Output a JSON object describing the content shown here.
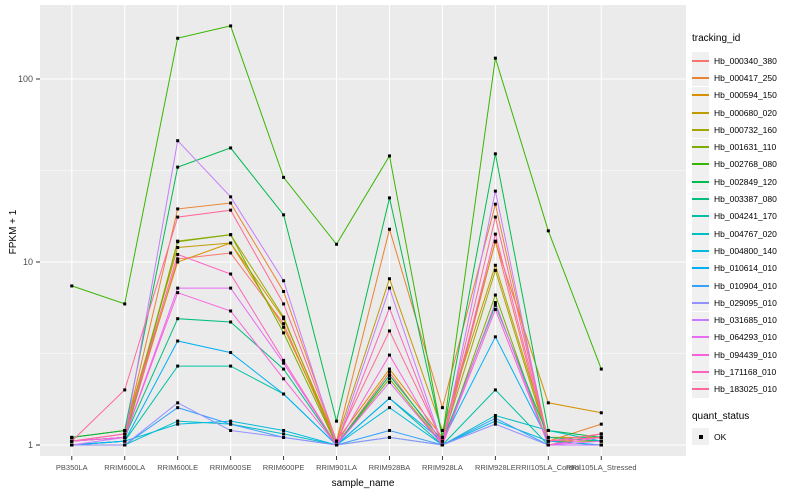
{
  "chart_data": {
    "type": "line",
    "title": "",
    "xlabel": "sample_name",
    "ylabel": "FPKM + 1",
    "y_scale": "log10",
    "y_ticks": [
      1,
      10,
      100
    ],
    "y_tick_labels": [
      "1",
      "10",
      "100"
    ],
    "y_minor_ticks": [
      3.162,
      31.62
    ],
    "ylim": [
      0.9,
      250
    ],
    "grid": true,
    "legend_position": "right",
    "legend_title": "tracking_id",
    "legend2_title": "quant_status",
    "legend2_items": [
      {
        "label": "OK",
        "marker": "black-square-point"
      }
    ],
    "categories": [
      "PB350LA",
      "RRIM600LA",
      "RRIM600LE",
      "RRIM600SE",
      "RRIM600PE",
      "RRIM901LA",
      "RRIM928BA",
      "RRIM928LA",
      "RRIM928LE",
      "RRII105LA_Control",
      "RRII105LA_Stressed"
    ],
    "series": [
      {
        "name": "Hb_000340_380",
        "color": "#F8766D",
        "values": [
          1.05,
          1.1,
          10.4,
          11.2,
          4.6,
          1.0,
          2.5,
          1.0,
          13.0,
          1.0,
          1.15
        ]
      },
      {
        "name": "Hb_000417_250",
        "color": "#EA8331",
        "values": [
          1.05,
          1.15,
          19.5,
          21.0,
          6.9,
          1.05,
          15.1,
          1.6,
          20.7,
          1.05,
          1.3
        ]
      },
      {
        "name": "Hb_000594_150",
        "color": "#D89000",
        "values": [
          1.1,
          1.2,
          10.0,
          12.7,
          4.4,
          1.05,
          2.6,
          1.1,
          12.9,
          1.7,
          1.5
        ]
      },
      {
        "name": "Hb_000680_020",
        "color": "#C09B00",
        "values": [
          1.1,
          1.2,
          12.0,
          12.7,
          4.9,
          1.05,
          8.1,
          1.2,
          9.6,
          1.1,
          1.1
        ]
      },
      {
        "name": "Hb_000732_160",
        "color": "#A3A500",
        "values": [
          1.05,
          1.1,
          13.0,
          14.1,
          5.0,
          1.0,
          2.4,
          1.05,
          9.0,
          1.05,
          1.05
        ]
      },
      {
        "name": "Hb_001631_110",
        "color": "#7CAE00",
        "values": [
          1.0,
          1.05,
          12.9,
          14.1,
          4.1,
          1.0,
          2.3,
          1.0,
          6.6,
          1.0,
          1.0
        ]
      },
      {
        "name": "Hb_002768_080",
        "color": "#39B600",
        "values": [
          7.4,
          5.9,
          167,
          195,
          29,
          12.5,
          38,
          1.1,
          130,
          14.8,
          2.6
        ]
      },
      {
        "name": "Hb_002849_120",
        "color": "#00BB4E",
        "values": [
          1.1,
          1.2,
          33,
          42,
          18.1,
          1.35,
          22.4,
          1.1,
          39,
          1.2,
          1.1
        ]
      },
      {
        "name": "Hb_003387_080",
        "color": "#00BF7D",
        "values": [
          1.05,
          1.1,
          4.9,
          4.7,
          2.6,
          1.0,
          2.4,
          1.05,
          5.8,
          1.1,
          1.05
        ]
      },
      {
        "name": "Hb_004241_170",
        "color": "#00C1A3",
        "values": [
          1.0,
          1.05,
          2.7,
          2.7,
          1.9,
          1.0,
          1.8,
          1.0,
          2.0,
          1.0,
          1.0
        ]
      },
      {
        "name": "Hb_004767_020",
        "color": "#00BFC4",
        "values": [
          1.0,
          1.0,
          1.35,
          1.3,
          1.15,
          1.0,
          1.1,
          1.0,
          1.45,
          1.2,
          1.05
        ]
      },
      {
        "name": "Hb_004800_140",
        "color": "#00BAE0",
        "values": [
          1.0,
          1.05,
          1.3,
          1.35,
          1.2,
          1.0,
          1.6,
          1.0,
          1.35,
          1.05,
          1.0
        ]
      },
      {
        "name": "Hb_010614_010",
        "color": "#00B0F6",
        "values": [
          1.0,
          1.05,
          3.7,
          3.2,
          1.9,
          1.0,
          1.8,
          1.05,
          3.9,
          1.05,
          1.0
        ]
      },
      {
        "name": "Hb_010904_010",
        "color": "#35A2FF",
        "values": [
          1.0,
          1.0,
          1.6,
          1.3,
          1.1,
          1.0,
          1.2,
          1.0,
          1.4,
          1.0,
          1.0
        ]
      },
      {
        "name": "Hb_029095_010",
        "color": "#9590FF",
        "values": [
          1.0,
          1.0,
          1.7,
          1.2,
          1.1,
          1.0,
          1.1,
          1.0,
          1.3,
          1.0,
          1.0
        ]
      },
      {
        "name": "Hb_031685_010",
        "color": "#C77CFF",
        "values": [
          1.0,
          1.1,
          46,
          22.7,
          7.9,
          1.0,
          7.2,
          1.0,
          24.4,
          1.0,
          1.0
        ]
      },
      {
        "name": "Hb_064293_010",
        "color": "#E76BF3",
        "values": [
          1.05,
          1.1,
          7.2,
          7.2,
          2.8,
          1.0,
          2.2,
          1.0,
          6.0,
          1.0,
          1.05
        ]
      },
      {
        "name": "Hb_094439_010",
        "color": "#FA62DB",
        "values": [
          1.05,
          1.1,
          6.8,
          5.4,
          2.3,
          1.0,
          3.1,
          1.0,
          5.5,
          1.0,
          1.1
        ]
      },
      {
        "name": "Hb_171168_010",
        "color": "#FF62BC",
        "values": [
          1.05,
          1.15,
          11.0,
          8.6,
          2.9,
          1.0,
          5.6,
          1.0,
          14.2,
          1.05,
          1.1
        ]
      },
      {
        "name": "Hb_183025_010",
        "color": "#FF6A98",
        "values": [
          1.05,
          2.0,
          17.6,
          19.2,
          5.9,
          1.05,
          4.2,
          1.05,
          17.6,
          1.05,
          1.15
        ]
      }
    ],
    "colors": {
      "panel_background": "#EBEBEB",
      "grid_major": "#FFFFFF",
      "grid_minor": "#F7F7F7",
      "tick_mark": "#333333",
      "tick_label": "#4D4D4D",
      "point_marker": "#000000"
    }
  }
}
